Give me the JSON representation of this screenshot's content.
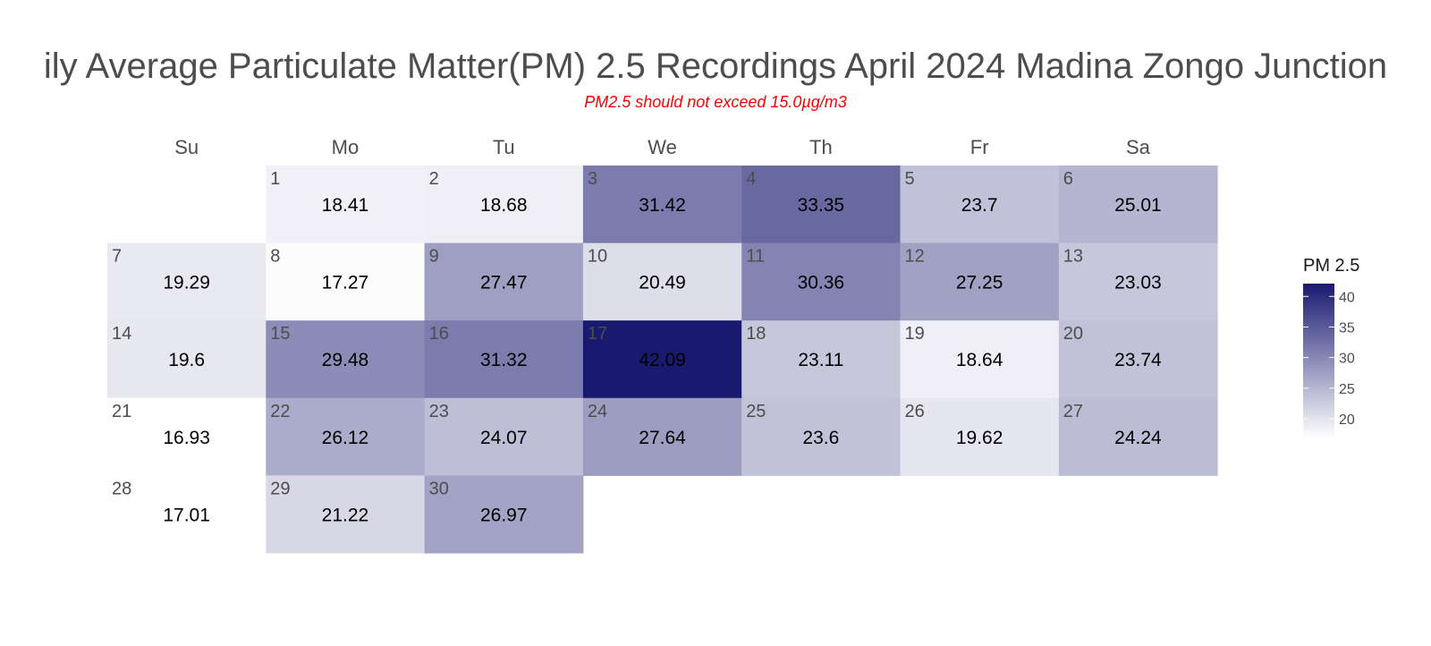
{
  "title": "ily Average Particulate Matter(PM) 2.5 Recordings April 2024 Madina Zongo Junction",
  "subtitle": "PM2.5 should not exceed 15.0µg/m3",
  "colors": {
    "low": "#ffffff",
    "high": "#191970",
    "title": "#4d4d4d",
    "subtitle": "#ff0000",
    "day_number": "#4d4d4d",
    "value_text": "#000000"
  },
  "chart_data": {
    "type": "heatmap",
    "subtype": "calendar",
    "weekdays": [
      "Su",
      "Mo",
      "Tu",
      "We",
      "Th",
      "Fr",
      "Sa"
    ],
    "first_weekday_index": 1,
    "days": [
      1,
      2,
      3,
      4,
      5,
      6,
      7,
      8,
      9,
      10,
      11,
      12,
      13,
      14,
      15,
      16,
      17,
      18,
      19,
      20,
      21,
      22,
      23,
      24,
      25,
      26,
      27,
      28,
      29,
      30
    ],
    "values": [
      18.41,
      18.68,
      31.42,
      33.35,
      23.7,
      25.01,
      19.29,
      17.27,
      27.47,
      20.49,
      30.36,
      27.25,
      23.03,
      19.6,
      29.48,
      31.32,
      42.09,
      23.11,
      18.64,
      23.74,
      16.93,
      26.12,
      24.07,
      27.64,
      23.6,
      19.62,
      24.24,
      17.01,
      21.22,
      26.97
    ],
    "legend": {
      "title": "PM 2.5",
      "ticks": [
        20,
        25,
        30,
        35,
        40
      ],
      "range": [
        16.93,
        42.09
      ],
      "placement": "right"
    }
  }
}
